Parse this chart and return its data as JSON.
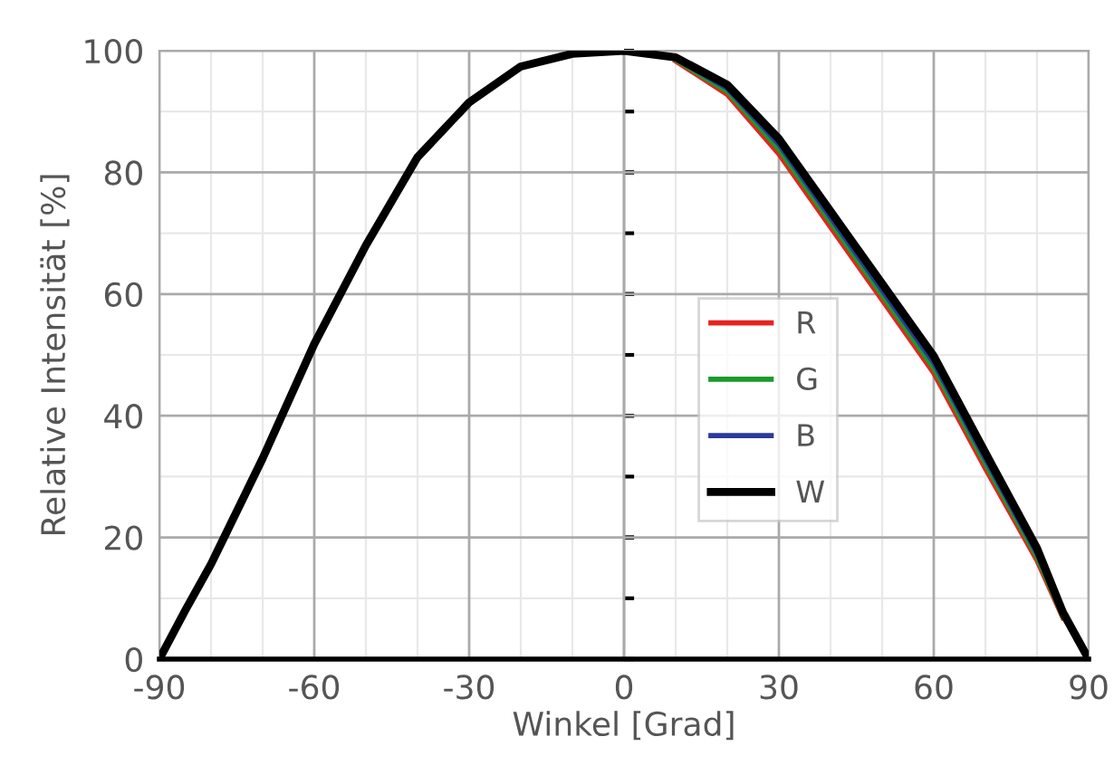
{
  "chart_data": {
    "type": "line",
    "xlabel": "Winkel [Grad]",
    "ylabel": "Relative Intensität [%]",
    "x": [
      -90,
      -85,
      -80,
      -70,
      -60,
      -50,
      -40,
      -30,
      -20,
      -10,
      0,
      10,
      20,
      30,
      40,
      50,
      60,
      70,
      80,
      85,
      90
    ],
    "series": [
      {
        "name": "R",
        "color": "#e8231f",
        "values": [
          null,
          null,
          null,
          null,
          null,
          null,
          null,
          null,
          null,
          null,
          null,
          98.3,
          92.8,
          83,
          71,
          59,
          47,
          31.3,
          16.2,
          6.8,
          null
        ]
      },
      {
        "name": "G",
        "color": "#1a9a2a",
        "values": [
          null,
          null,
          null,
          null,
          null,
          null,
          null,
          null,
          null,
          null,
          null,
          98.5,
          93.3,
          83.8,
          71.8,
          59.8,
          47.8,
          32.1,
          16.8,
          7,
          null
        ]
      },
      {
        "name": "B",
        "color": "#2b3a9b",
        "values": [
          null,
          null,
          null,
          null,
          null,
          null,
          null,
          null,
          null,
          null,
          null,
          98.7,
          93.8,
          84.6,
          72.6,
          60.6,
          48.7,
          32.9,
          17.4,
          7.3,
          null
        ]
      },
      {
        "name": "W",
        "color": "#000000",
        "values": [
          0,
          8,
          15.6,
          33,
          51.8,
          68,
          82.5,
          91.5,
          97.4,
          99.5,
          100,
          98.9,
          94.4,
          85.5,
          73.6,
          61.7,
          49.8,
          33.9,
          18.2,
          7.7,
          0
        ]
      }
    ],
    "xlim": [
      -90,
      90
    ],
    "ylim": [
      0,
      100
    ],
    "xticks": [
      -90,
      -60,
      -30,
      0,
      30,
      60,
      90
    ],
    "yticks": [
      0,
      20,
      40,
      60,
      80,
      100
    ],
    "grid": true,
    "legend": "center",
    "marker": "none",
    "line_style": "solid"
  }
}
